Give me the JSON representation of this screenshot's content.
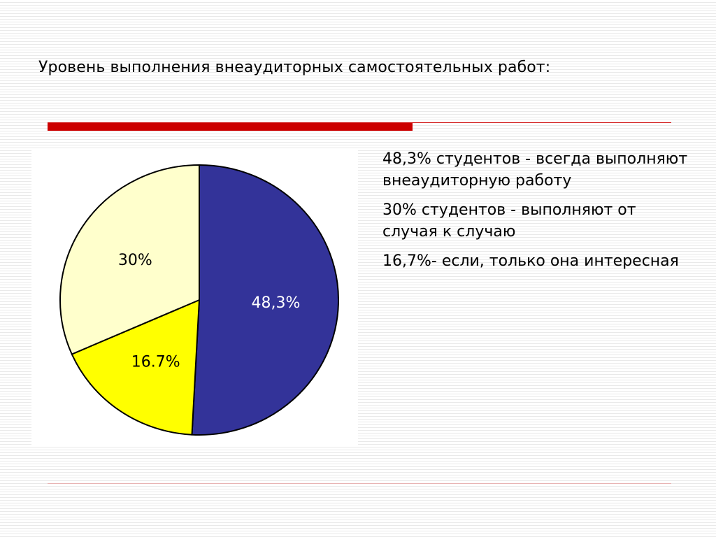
{
  "slide": {
    "title": "Уровень выполнения внеаудиторных самостоятельных работ:"
  },
  "colors": {
    "accent_bar": "#cc0000",
    "rule": "#e8b4b4"
  },
  "notes": [
    "48,3% студентов - всегда выполняют внеаудиторную работу",
    "30% студентов - выполняют от случая к случаю",
    "16,7%- если, только она интересная"
  ],
  "chart_data": {
    "type": "pie",
    "slices": [
      {
        "value": 48.3,
        "label": "48,3%",
        "color": "#333399",
        "label_color": "#ffffff"
      },
      {
        "value": 16.7,
        "label": "16.7%",
        "color": "#ffff00",
        "label_color": "#000000"
      },
      {
        "value": 30,
        "label": "30%",
        "color": "#ffffcc",
        "label_color": "#000000"
      }
    ],
    "start_angle_deg": 0,
    "direction": "clockwise",
    "legend": "none"
  }
}
